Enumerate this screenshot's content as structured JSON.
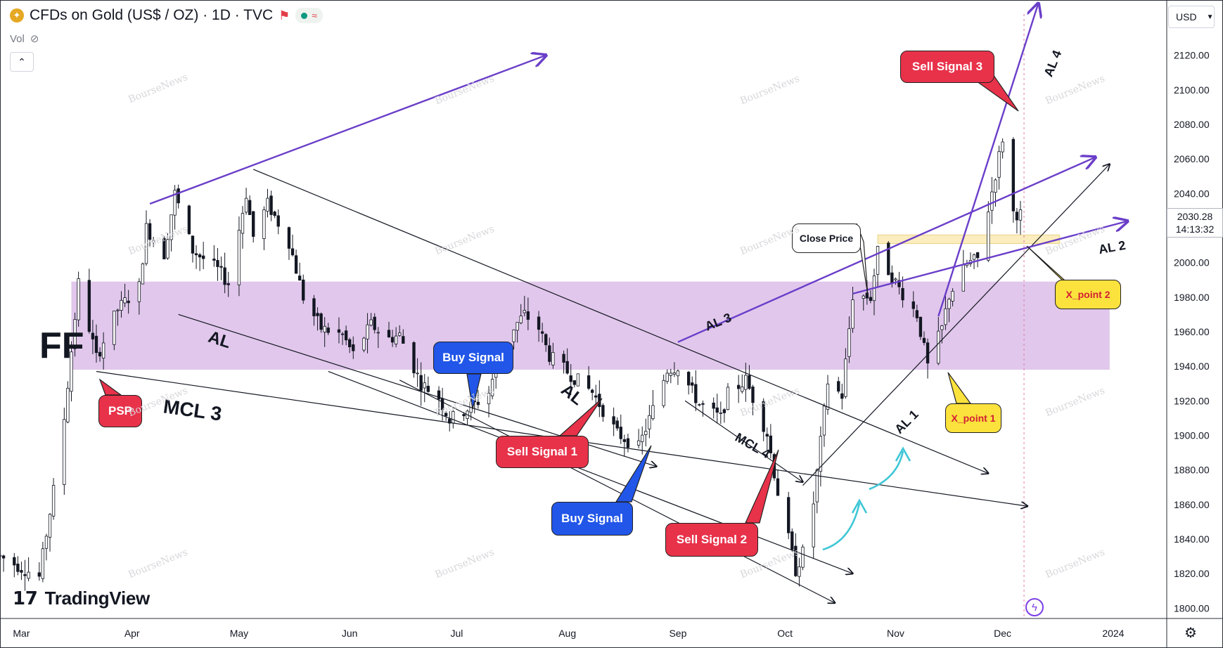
{
  "header": {
    "symbol_title": "CFDs on Gold (US$ / OZ) · 1D · TVC",
    "vol_label": "Vol",
    "currency": "USD"
  },
  "price_tag": {
    "price": "2030.28",
    "countdown": "14:13:32"
  },
  "brand": {
    "name": "TradingView"
  },
  "watermark_text": "BourseNews",
  "colors": {
    "zone": "#dcbde8",
    "upper_zone": "#fbecb8",
    "purple_line": "#6a3ec9",
    "cyan_arrow": "#3ec6d6",
    "red_callout": "#e8324a",
    "blue_callout": "#2156e8",
    "yellow_callout": "#fbe23d"
  },
  "annotations": {
    "ff": "FF",
    "mcl3": "MCL 3",
    "al_a": "AL",
    "al_b": "AL",
    "mcl4": "MCL 4",
    "al1": "AL 1",
    "al2": "AL 2",
    "al3": "AL 3",
    "al4": "AL 4",
    "psp": "PSP",
    "buy_signal_1": "Buy Signal",
    "buy_signal_2": "Buy Signal",
    "sell_signal_1": "Sell Signal 1",
    "sell_signal_2": "Sell Signal 2",
    "sell_signal_3": "Sell Signal 3",
    "close_price": "Close Price",
    "x_point_1": "X_point 1",
    "x_point_2": "X_point 2"
  },
  "chart_data": {
    "type": "candlestick",
    "title": "CFDs on Gold (US$ / OZ) · 1D · TVC",
    "y_ticks": [
      1800,
      1820,
      1840,
      1860,
      1880,
      1900,
      1920,
      1940,
      1960,
      1980,
      2000,
      2020,
      2040,
      2060,
      2080,
      2100,
      2120
    ],
    "y_tick_labels": [
      "1800.00",
      "1820.00",
      "1840.00",
      "1860.00",
      "1880.00",
      "1900.00",
      "1920.00",
      "1940.00",
      "1960.00",
      "1980.00",
      "2000.00",
      "2020.00",
      "2040.00",
      "2060.00",
      "2080.00",
      "2100.00",
      "2120.00"
    ],
    "ylim": [
      1794,
      2152
    ],
    "x_labels": [
      "Mar",
      "Apr",
      "May",
      "Jun",
      "Jul",
      "Aug",
      "Sep",
      "Oct",
      "Nov",
      "Dec",
      "2024"
    ],
    "x_label_dates": [
      "2023-03-01",
      "2023-04-01",
      "2023-05-01",
      "2023-06-01",
      "2023-07-01",
      "2023-08-01",
      "2023-09-01",
      "2023-10-01",
      "2023-11-01",
      "2023-12-01",
      "2024-01-01"
    ],
    "xlim": [
      "2023-02-23",
      "2024-01-16"
    ],
    "last_price": 2030.28,
    "zones": [
      {
        "from": 1938,
        "to": 1989,
        "start": "2023-03-15",
        "end": "2023-12-31"
      },
      {
        "from": 2011,
        "to": 2016,
        "start": "2023-10-27",
        "end": "2023-12-17"
      }
    ],
    "trend_points": [
      [
        "2023-02-23",
        1830
      ],
      [
        "2023-03-06",
        1818
      ],
      [
        "2023-03-10",
        1868
      ],
      [
        "2023-03-13",
        1910
      ],
      [
        "2023-03-17",
        1988
      ],
      [
        "2023-03-22",
        1945
      ],
      [
        "2023-03-28",
        1973
      ],
      [
        "2023-04-03",
        1986
      ],
      [
        "2023-04-05",
        2020
      ],
      [
        "2023-04-10",
        2005
      ],
      [
        "2023-04-13",
        2040
      ],
      [
        "2023-04-18",
        2007
      ],
      [
        "2023-04-25",
        1996
      ],
      [
        "2023-04-28",
        1988
      ],
      [
        "2023-05-03",
        2040
      ],
      [
        "2023-05-05",
        2015
      ],
      [
        "2023-05-09",
        2034
      ],
      [
        "2023-05-15",
        2012
      ],
      [
        "2023-05-19",
        1980
      ],
      [
        "2023-05-24",
        1962
      ],
      [
        "2023-05-30",
        1958
      ],
      [
        "2023-06-02",
        1947
      ],
      [
        "2023-06-07",
        1964
      ],
      [
        "2023-06-12",
        1956
      ],
      [
        "2023-06-15",
        1958
      ],
      [
        "2023-06-21",
        1930
      ],
      [
        "2023-06-26",
        1922
      ],
      [
        "2023-06-29",
        1909
      ],
      [
        "2023-07-06",
        1918
      ],
      [
        "2023-07-10",
        1925
      ],
      [
        "2023-07-14",
        1955
      ],
      [
        "2023-07-20",
        1970
      ],
      [
        "2023-07-24",
        1962
      ],
      [
        "2023-07-27",
        1946
      ],
      [
        "2023-08-02",
        1935
      ],
      [
        "2023-08-08",
        1925
      ],
      [
        "2023-08-15",
        1901
      ],
      [
        "2023-08-21",
        1893
      ],
      [
        "2023-08-25",
        1915
      ],
      [
        "2023-08-29",
        1938
      ],
      [
        "2023-09-01",
        1940
      ],
      [
        "2023-09-07",
        1918
      ],
      [
        "2023-09-13",
        1910
      ],
      [
        "2023-09-15",
        1924
      ],
      [
        "2023-09-20",
        1932
      ],
      [
        "2023-09-26",
        1901
      ],
      [
        "2023-09-29",
        1867
      ],
      [
        "2023-10-04",
        1822
      ],
      [
        "2023-10-06",
        1832
      ],
      [
        "2023-10-09",
        1861
      ],
      [
        "2023-10-13",
        1931
      ],
      [
        "2023-10-17",
        1923
      ],
      [
        "2023-10-20",
        1981
      ],
      [
        "2023-10-25",
        1980
      ],
      [
        "2023-10-27",
        2006
      ],
      [
        "2023-11-02",
        1985
      ],
      [
        "2023-11-07",
        1970
      ],
      [
        "2023-11-10",
        1940
      ],
      [
        "2023-11-14",
        1962
      ],
      [
        "2023-11-16",
        1981
      ],
      [
        "2023-11-21",
        1999
      ],
      [
        "2023-11-24",
        2002
      ],
      [
        "2023-11-28",
        2041
      ],
      [
        "2023-12-01",
        2072
      ],
      [
        "2023-12-04",
        2029
      ],
      [
        "2023-12-06",
        2028
      ],
      [
        "2023-12-07",
        2030
      ]
    ],
    "trend_lines": [
      {
        "id": "purple-top",
        "p1": [
          "2023-04-06",
          2034
        ],
        "p2": [
          "2023-07-26",
          2120
        ],
        "color": "purple"
      },
      {
        "id": "black-top-channel",
        "p1": [
          "2023-05-05",
          2054
        ],
        "p2": [
          "2023-11-27",
          1878
        ],
        "color": "black"
      },
      {
        "id": "al-lower-1",
        "p1": [
          "2023-04-14",
          1970
        ],
        "p2": [
          "2023-08-26",
          1882
        ],
        "color": "black"
      },
      {
        "id": "al-lower-2",
        "p1": [
          "2023-05-26",
          1937
        ],
        "p2": [
          "2023-10-20",
          1820
        ],
        "color": "black"
      },
      {
        "id": "al-lower-3",
        "p1": [
          "2023-06-15",
          1932
        ],
        "p2": [
          "2023-10-15",
          1803
        ],
        "color": "black"
      },
      {
        "id": "mcl3",
        "p1": [
          "2023-03-22",
          1937
        ],
        "p2": [
          "2023-12-08",
          1859
        ],
        "color": "black"
      },
      {
        "id": "mcl4",
        "p1": [
          "2023-09-03",
          1920
        ],
        "p2": [
          "2023-10-06",
          1873
        ],
        "color": "black"
      },
      {
        "id": "al1",
        "p1": [
          "2023-10-06",
          1871
        ],
        "p2": [
          "2023-12-31",
          2057
        ],
        "color": "black"
      },
      {
        "id": "al3",
        "p1": [
          "2023-09-01",
          1954
        ],
        "p2": [
          "2023-12-27",
          2061
        ],
        "color": "purple"
      },
      {
        "id": "al2",
        "p1": [
          "2023-10-20",
          1982
        ],
        "p2": [
          "2024-01-05",
          2024
        ],
        "color": "purple"
      },
      {
        "id": "al4",
        "p1": [
          "2023-11-13",
          1969
        ],
        "p2": [
          "2023-12-11",
          2150
        ],
        "color": "purple"
      }
    ]
  }
}
